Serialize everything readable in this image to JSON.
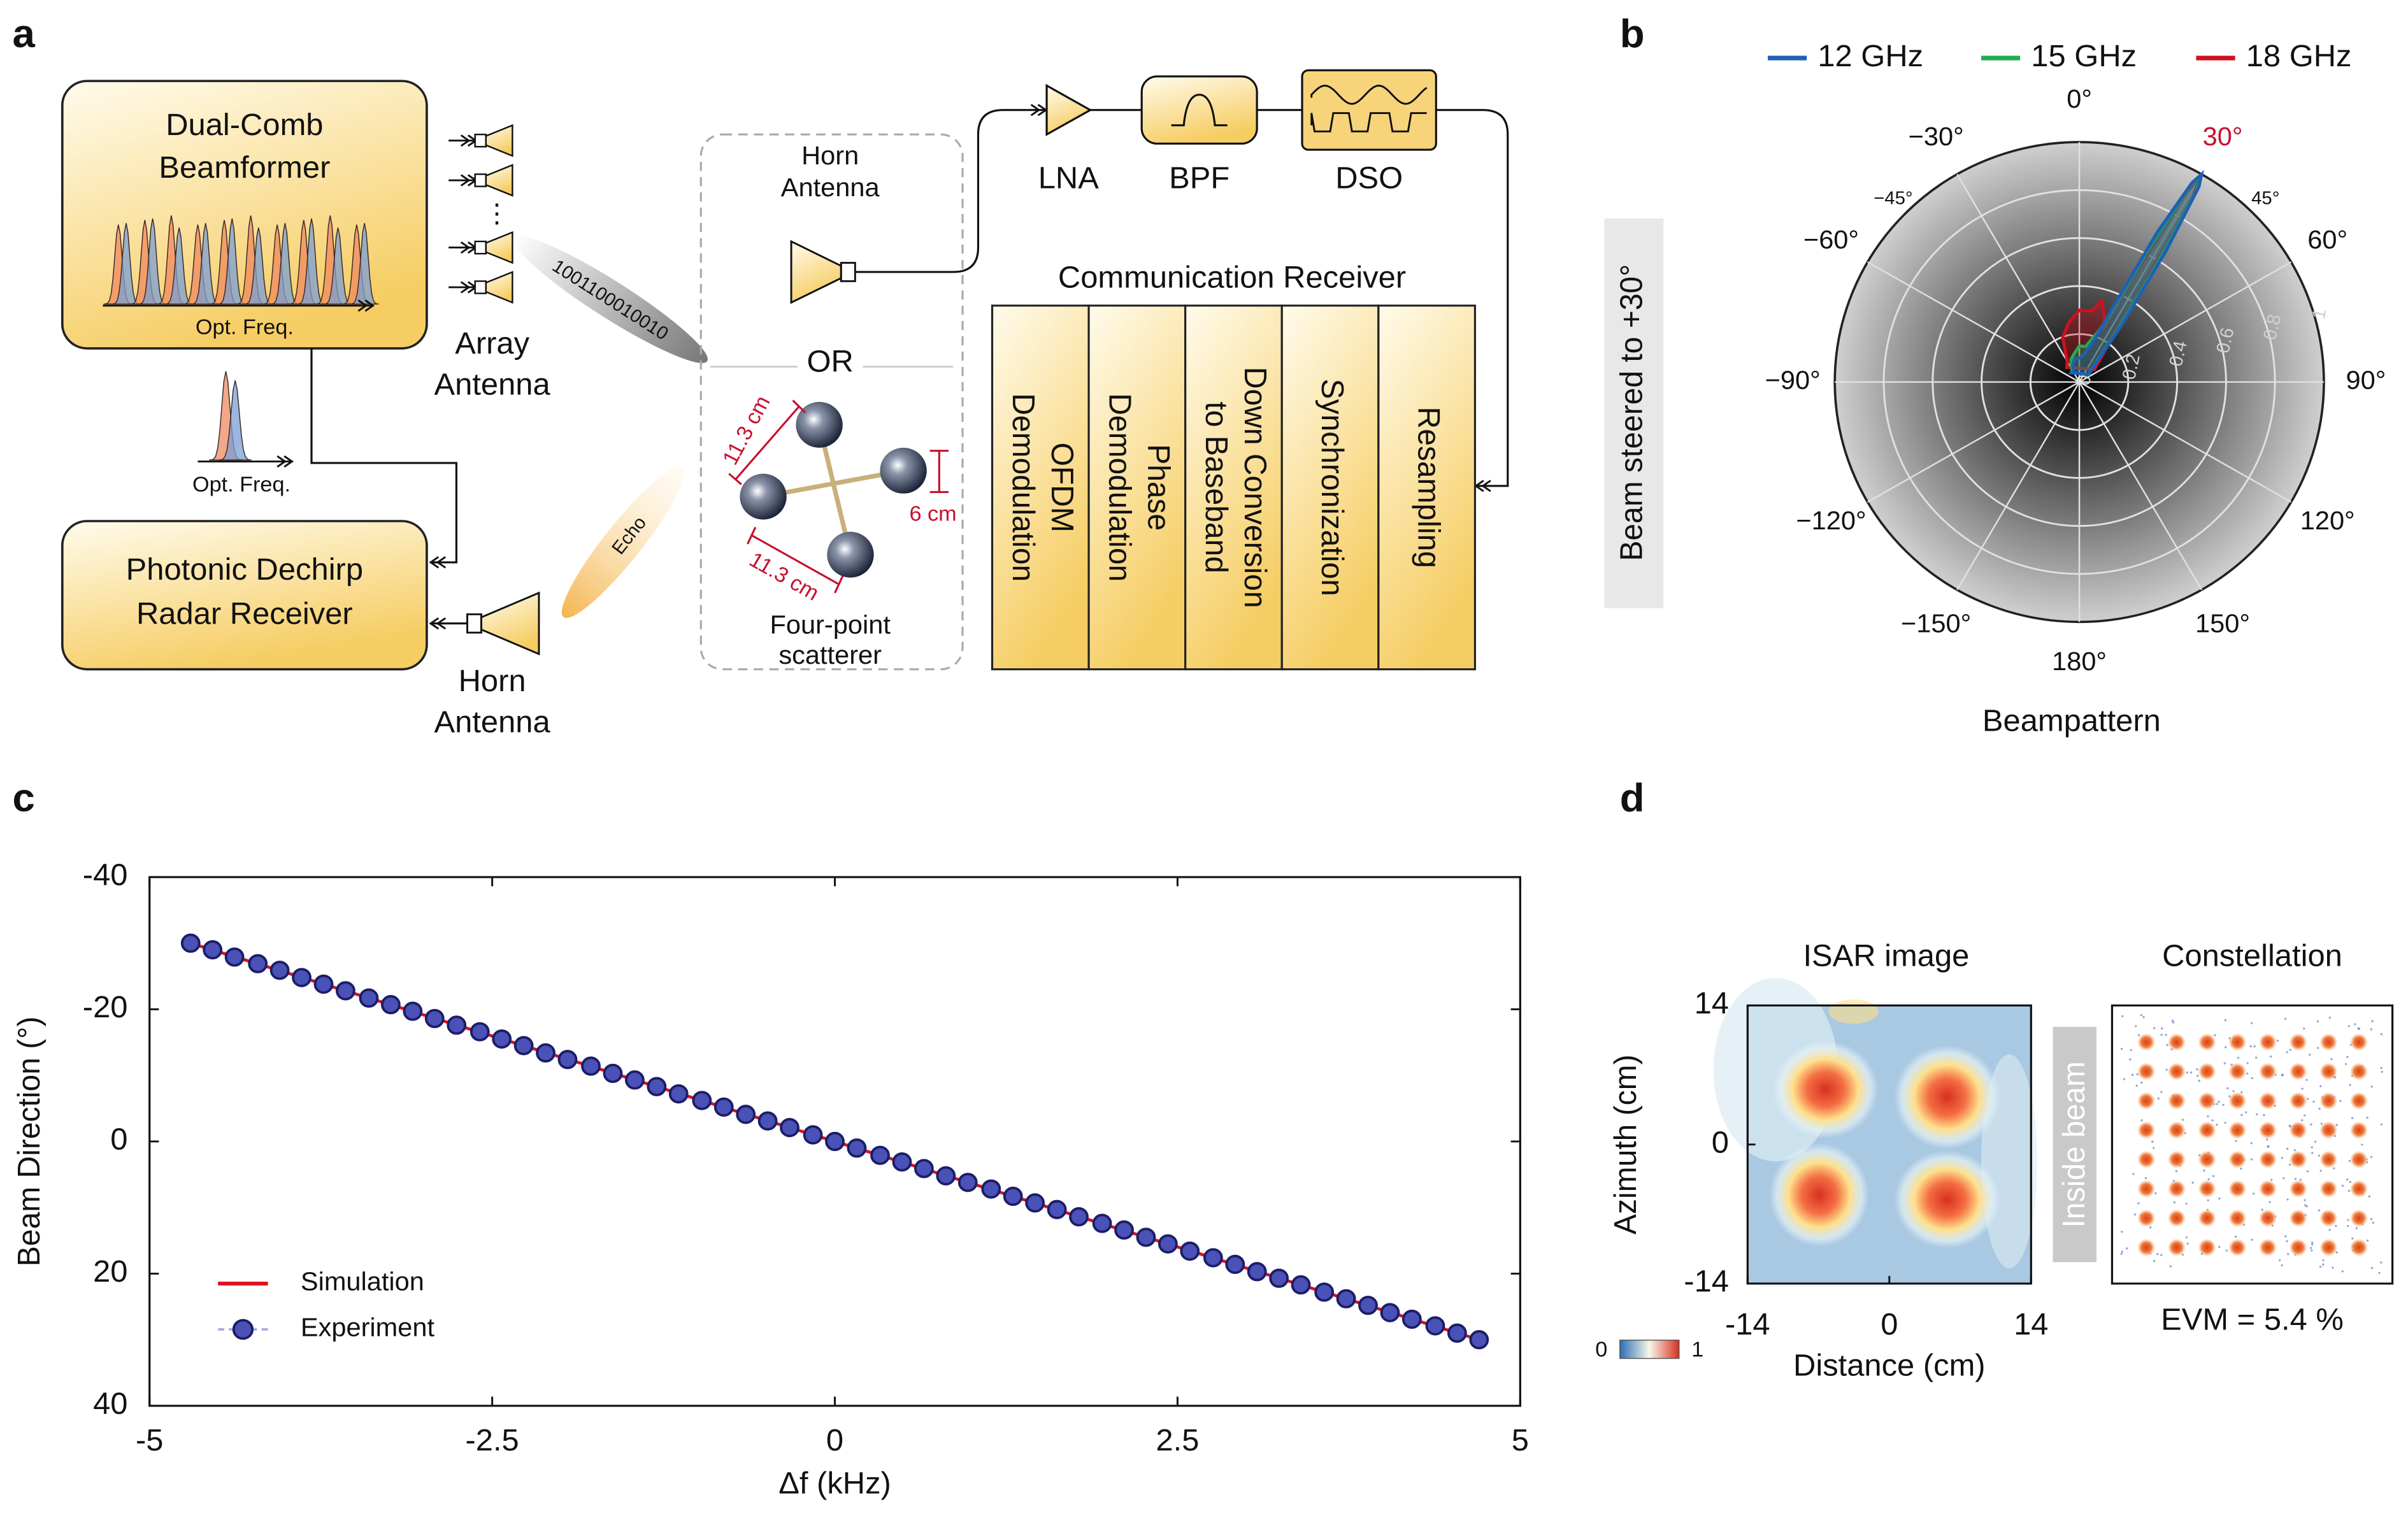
{
  "panel_a": {
    "label": "a",
    "beamformer": [
      "Dual-Comb",
      "Beamformer"
    ],
    "comb_axis": "Opt. Freq.",
    "array_antenna": [
      "Array",
      "Antenna"
    ],
    "bits": "1001100010010",
    "spectrum_axis": "Opt. Freq.",
    "radar_receiver": [
      "Photonic Dechirp",
      "Radar Receiver"
    ],
    "echo": "Echo",
    "rx_horn": [
      "Horn",
      "Antenna"
    ],
    "comm_horn": [
      "Horn",
      "Antenna"
    ],
    "or": "OR",
    "scatterer": {
      "label": [
        "Four-point",
        "scatterer"
      ],
      "spacing_1": "11.3 cm",
      "spacing_2": "11.3 cm",
      "size": "6 cm"
    },
    "chain": [
      "LNA",
      "BPF",
      "DSO"
    ],
    "receiver_title": "Communication Receiver",
    "receiver_blocks": [
      [
        "OFDM",
        "Demodulation"
      ],
      [
        "Phase",
        "Demodulation"
      ],
      [
        "Down Conversion",
        "to Baseband"
      ],
      [
        "Synchronization"
      ],
      [
        "Resampling"
      ]
    ]
  },
  "chart_data": [
    {
      "type": "polar",
      "panel_label": "b",
      "title": "Beampattern",
      "annotation": "Beam steered to +30°",
      "rlim": [
        0,
        1
      ],
      "rticks": [
        0,
        0.2,
        0.4,
        0.6,
        0.8,
        1
      ],
      "angle_ticks": [
        {
          "value": 0,
          "label": "0°"
        },
        {
          "value": 30,
          "label": "30°",
          "color": "#c8102e"
        },
        {
          "value": 60,
          "label": "60°"
        },
        {
          "value": 90,
          "label": "90°"
        },
        {
          "value": 120,
          "label": "120°"
        },
        {
          "value": 150,
          "label": "150°"
        },
        {
          "value": 180,
          "label": "180°"
        },
        {
          "value": -150,
          "label": "−150°"
        },
        {
          "value": -120,
          "label": "−120°"
        },
        {
          "value": -90,
          "label": "−90°"
        },
        {
          "value": -60,
          "label": "−60°"
        },
        {
          "value": -30,
          "label": "−30°"
        }
      ],
      "minor_angle_ticks": [
        {
          "value": -45,
          "label": "−45°"
        },
        {
          "value": 45,
          "label": "45°"
        }
      ],
      "theta": [
        -40,
        -30,
        -20,
        -10,
        0,
        10,
        15,
        20,
        24,
        27,
        29,
        30,
        31,
        33,
        36,
        40,
        50
      ],
      "series": [
        {
          "name": "12 GHz",
          "color": "#1f5fb4",
          "values": [
            0.05,
            0.05,
            0.08,
            0.1,
            0.1,
            0.12,
            0.15,
            0.2,
            0.35,
            0.7,
            0.95,
            1,
            0.95,
            0.65,
            0.3,
            0.12,
            0.05
          ]
        },
        {
          "name": "15 GHz",
          "color": "#1fae4e",
          "values": [
            0.05,
            0.06,
            0.1,
            0.12,
            0.15,
            0.15,
            0.18,
            0.22,
            0.3,
            0.6,
            0.93,
            1,
            0.93,
            0.55,
            0.25,
            0.1,
            0.05
          ]
        },
        {
          "name": "18 GHz",
          "color": "#d0101e",
          "values": [
            0.08,
            0.1,
            0.2,
            0.25,
            0.3,
            0.3,
            0.35,
            0.3,
            0.25,
            0.5,
            0.9,
            1,
            0.9,
            0.45,
            0.2,
            0.15,
            0.08
          ]
        }
      ]
    },
    {
      "type": "line",
      "panel_label": "c",
      "xlabel": "Δf (kHz)",
      "ylabel": "Beam Direction (°)",
      "xlim": [
        -5,
        5
      ],
      "ylim": [
        40,
        -40
      ],
      "xticks": [
        -5,
        -2.5,
        0,
        2.5,
        5
      ],
      "yticks": [
        -40,
        -20,
        0,
        20,
        40
      ],
      "series": [
        {
          "name": "Simulation",
          "color": "#e0101e",
          "x": [
            -4.7,
            4.7
          ],
          "values": [
            -30,
            30
          ]
        },
        {
          "name": "Experiment",
          "color": "#4a52b8",
          "edgecolor": "#1b1e66",
          "marker": "o",
          "x": [
            -4.7,
            -4.54,
            -4.38,
            -4.21,
            -4.05,
            -3.89,
            -3.73,
            -3.57,
            -3.4,
            -3.24,
            -3.08,
            -2.92,
            -2.76,
            -2.59,
            -2.43,
            -2.27,
            -2.11,
            -1.95,
            -1.78,
            -1.62,
            -1.46,
            -1.3,
            -1.14,
            -0.97,
            -0.81,
            -0.65,
            -0.49,
            -0.33,
            -0.16,
            0.0,
            0.16,
            0.33,
            0.49,
            0.65,
            0.81,
            0.97,
            1.14,
            1.3,
            1.46,
            1.62,
            1.78,
            1.95,
            2.11,
            2.27,
            2.43,
            2.59,
            2.76,
            2.92,
            3.08,
            3.24,
            3.4,
            3.57,
            3.73,
            3.89,
            4.05,
            4.21,
            4.38,
            4.54,
            4.7
          ],
          "values": [
            -30.0,
            -29.0,
            -27.9,
            -26.9,
            -25.9,
            -24.8,
            -23.8,
            -22.8,
            -21.7,
            -20.7,
            -19.7,
            -18.6,
            -17.6,
            -16.6,
            -15.5,
            -14.5,
            -13.4,
            -12.4,
            -11.4,
            -10.3,
            -9.3,
            -8.3,
            -7.2,
            -6.2,
            -5.2,
            -4.1,
            -3.1,
            -2.1,
            -1.0,
            0.0,
            1.0,
            2.1,
            3.1,
            4.1,
            5.2,
            6.2,
            7.2,
            8.3,
            9.3,
            10.3,
            11.4,
            12.4,
            13.4,
            14.5,
            15.5,
            16.6,
            17.6,
            18.6,
            19.7,
            20.7,
            21.7,
            22.8,
            23.8,
            24.8,
            25.9,
            26.9,
            27.9,
            29.0,
            30.0
          ]
        }
      ]
    },
    {
      "type": "heatmap",
      "panel_label": "d",
      "title": "ISAR image",
      "xlabel": "Distance (cm)",
      "ylabel": "Azimuth (cm)",
      "annotation": "Inside beam",
      "xlim": [
        -14,
        14
      ],
      "ylim": [
        -14,
        14
      ],
      "xticks": [
        -14,
        0,
        14
      ],
      "yticks": [
        -14,
        0,
        14
      ],
      "clim": [
        0,
        1
      ],
      "cticks": [
        0,
        1
      ]
    },
    {
      "type": "constellation",
      "title": "Constellation",
      "annotation": "EVM = 5.4 %"
    }
  ]
}
